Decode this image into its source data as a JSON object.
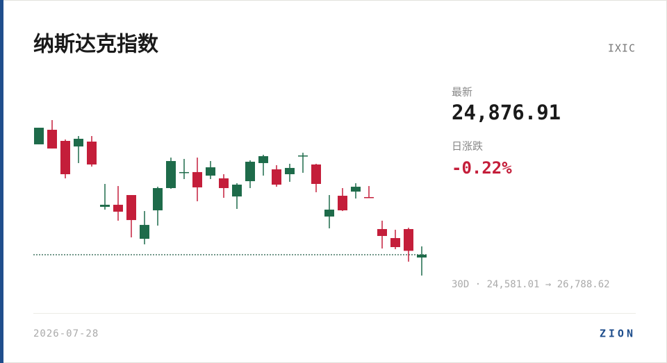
{
  "chart_data": {
    "type": "candlestick",
    "title": "纳斯达克指数",
    "up_color": "#1e6b4a",
    "down_color": "#c41e3a",
    "ylim": [
      24581.01,
      26788.62
    ],
    "reference_line": 24876.91,
    "open": [
      26444,
      26651,
      26493,
      26414,
      26483,
      25557,
      25586,
      25724,
      25103,
      25507,
      25823,
      26040,
      26050,
      26000,
      25961,
      25704,
      25921,
      26178,
      26089,
      26020,
      26276,
      26158,
      25419,
      25714,
      25773,
      25695,
      25241,
      25113,
      25241,
      24837
    ],
    "high": [
      26680,
      26788.62,
      26513,
      26562,
      26562,
      25882,
      25852,
      25724,
      25497,
      25842,
      26256,
      26237,
      26256,
      26207,
      26020,
      25892,
      26217,
      26296,
      26148,
      26168,
      26325,
      26168,
      25724,
      25823,
      25892,
      25852,
      25360,
      25231,
      25260,
      24995
    ],
    "low": [
      26444,
      26385,
      25961,
      26178,
      26128,
      25517,
      25360,
      25123,
      25024,
      25290,
      25813,
      25951,
      25636,
      25951,
      25685,
      25527,
      25823,
      26000,
      25842,
      25912,
      26040,
      25764,
      25251,
      25497,
      25675,
      25685,
      24965,
      24955,
      24778,
      24581.01
    ],
    "close": [
      26680,
      26385,
      26020,
      26523,
      26158,
      25586,
      25488,
      25369,
      25300,
      25823,
      26207,
      26050,
      25833,
      26118,
      25823,
      25872,
      26197,
      26276,
      25872,
      26109,
      26286,
      25882,
      25517,
      25507,
      25842,
      25685,
      25143,
      24985,
      24932,
      24876.91
    ]
  },
  "card": {
    "ticker": "IXIC",
    "latest_label": "最新",
    "latest": "24,876.91",
    "change_label": "日涨跌",
    "change": "-0.22%",
    "range": "30D · 24,581.01 → 26,788.62",
    "date": "2026-07-28",
    "brand": "ZION"
  }
}
